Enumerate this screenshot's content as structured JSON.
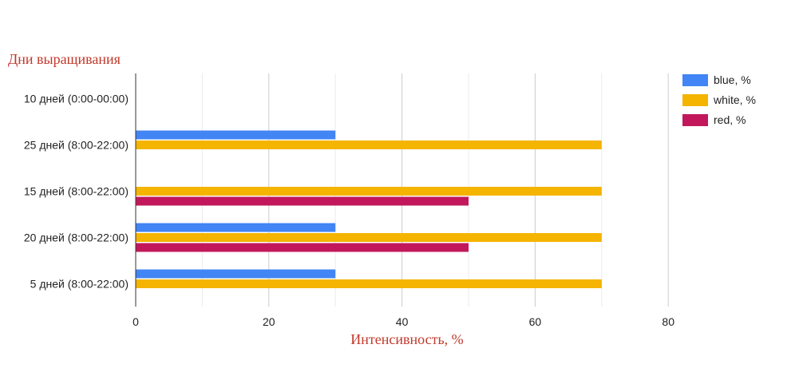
{
  "chart_data": {
    "type": "bar",
    "orientation": "horizontal",
    "ylabel": "Дни выращивания",
    "xlabel": "Интенсивность, %",
    "categories": [
      "10 дней (0:00-00:00)",
      "25 дней (8:00-22:00)",
      "15 дней (8:00-22:00)",
      "20 дней (8:00-22:00)",
      "5 дней (8:00-22:00)"
    ],
    "series": [
      {
        "name": "blue, %",
        "color": "#4285f4",
        "values": [
          0,
          30,
          0,
          30,
          30
        ]
      },
      {
        "name": "white, %",
        "color": "#f4b400",
        "values": [
          0,
          70,
          70,
          70,
          70
        ]
      },
      {
        "name": "red, %",
        "color": "#c2185b",
        "values": [
          0,
          0,
          50,
          50,
          0
        ]
      }
    ],
    "xlim": [
      0,
      80
    ],
    "xticks": [
      0,
      20,
      40,
      60,
      80
    ],
    "grid": true,
    "legend": "right"
  }
}
